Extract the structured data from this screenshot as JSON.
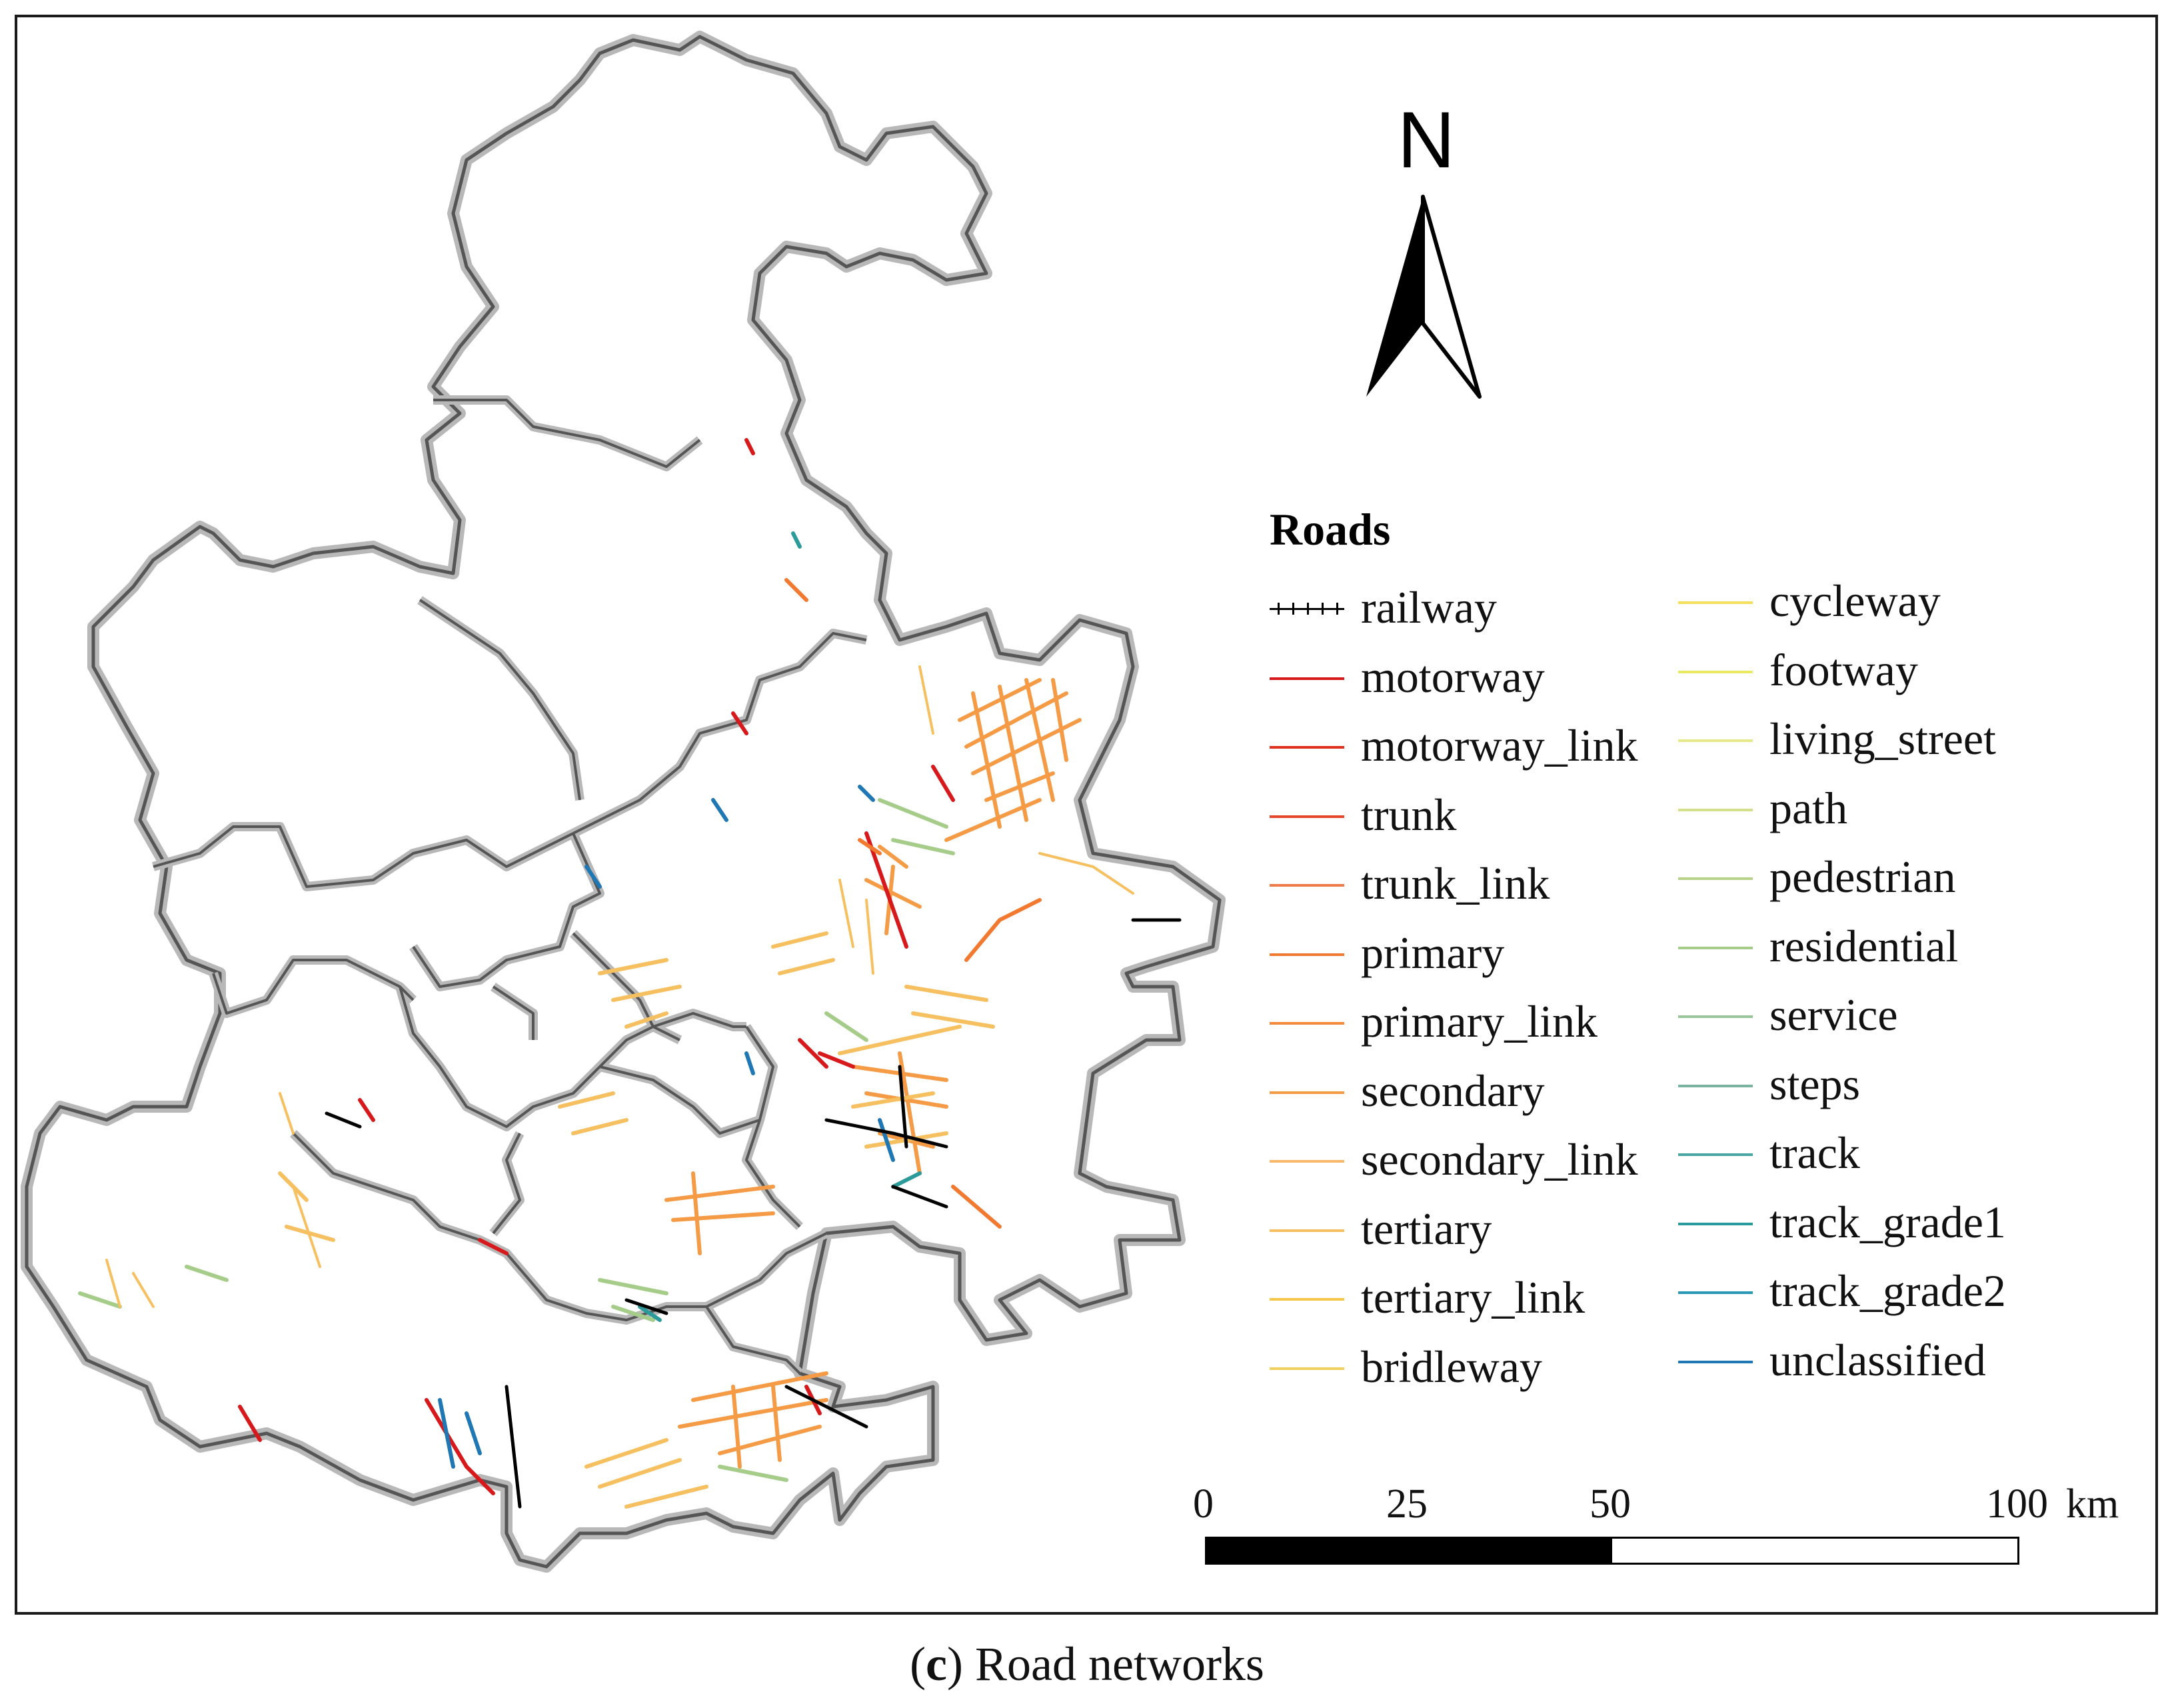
{
  "north_arrow": {
    "label": "N"
  },
  "legend": {
    "title": "Roads",
    "col1": [
      {
        "label": "railway",
        "color": "#000000",
        "style": "railway"
      },
      {
        "label": "motorway",
        "color": "#d7191c"
      },
      {
        "label": "motorway_link",
        "color": "#e0301e"
      },
      {
        "label": "trunk",
        "color": "#e8462a"
      },
      {
        "label": "trunk_link",
        "color": "#ee7a4a"
      },
      {
        "label": "primary",
        "color": "#f27a30"
      },
      {
        "label": "primary_link",
        "color": "#f58a3a"
      },
      {
        "label": "secondary",
        "color": "#f59a45"
      },
      {
        "label": "secondary_link",
        "color": "#f8b86a"
      },
      {
        "label": "tertiary",
        "color": "#f6c060"
      },
      {
        "label": "tertiary_link",
        "color": "#f5c84a"
      },
      {
        "label": "bridleway",
        "color": "#f0d060"
      }
    ],
    "col2": [
      {
        "label": "cycleway",
        "color": "#f2e05a"
      },
      {
        "label": "footway",
        "color": "#eaea60"
      },
      {
        "label": "living_street",
        "color": "#e6e88a"
      },
      {
        "label": "path",
        "color": "#d6e08a"
      },
      {
        "label": "pedestrian",
        "color": "#b8d28a"
      },
      {
        "label": "residential",
        "color": "#a6cc8a"
      },
      {
        "label": "service",
        "color": "#9ac49a"
      },
      {
        "label": "steps",
        "color": "#7ab3a0"
      },
      {
        "label": "track",
        "color": "#4aa6a2"
      },
      {
        "label": "track_grade1",
        "color": "#2a9a9a"
      },
      {
        "label": "track_grade2",
        "color": "#2a98b4"
      },
      {
        "label": "unclassified",
        "color": "#1f78b4"
      }
    ]
  },
  "scale_bar": {
    "ticks": [
      "0",
      "25",
      "50",
      "100"
    ],
    "unit": "km"
  },
  "caption": {
    "letter": "c",
    "text": " Road networks"
  },
  "colors": {
    "boundary": "#555555",
    "boundary_halo": "#b8b8b8",
    "frame": "#1a1a1a"
  }
}
